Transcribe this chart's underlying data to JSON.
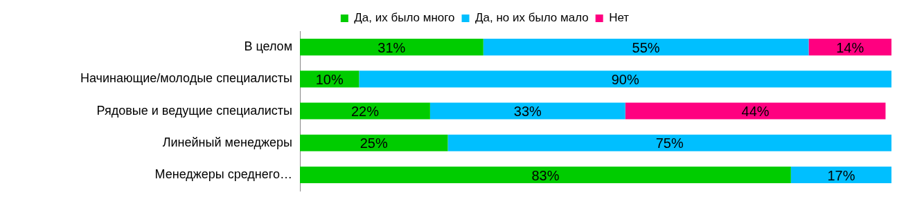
{
  "chart_data": {
    "type": "bar",
    "orientation": "horizontal",
    "stacked": true,
    "legend": "top",
    "tick_labels": "y",
    "xlim": [
      0,
      100
    ],
    "categories": [
      "В целом",
      "Начинающие/молодые специалисты",
      "Рядовые и ведущие специалисты",
      "Линейный менеджеры",
      "Менеджеры среднего…"
    ],
    "series": [
      {
        "name": "Да, их было много",
        "color": "#00cc00",
        "values": [
          31,
          10,
          22,
          25,
          83
        ],
        "value_labels": [
          "31%",
          "10%",
          "22%",
          "25%",
          "83%"
        ]
      },
      {
        "name": "Да, но их было мало",
        "color": "#00bfff",
        "values": [
          55,
          90,
          33,
          75,
          17
        ],
        "value_labels": [
          "55%",
          "90%",
          "33%",
          "75%",
          "17%"
        ]
      },
      {
        "name": "Нет",
        "color": "#ff0080",
        "values": [
          14,
          null,
          44,
          null,
          null
        ],
        "value_labels": [
          "14%",
          null,
          "44%",
          null,
          null
        ]
      }
    ]
  }
}
